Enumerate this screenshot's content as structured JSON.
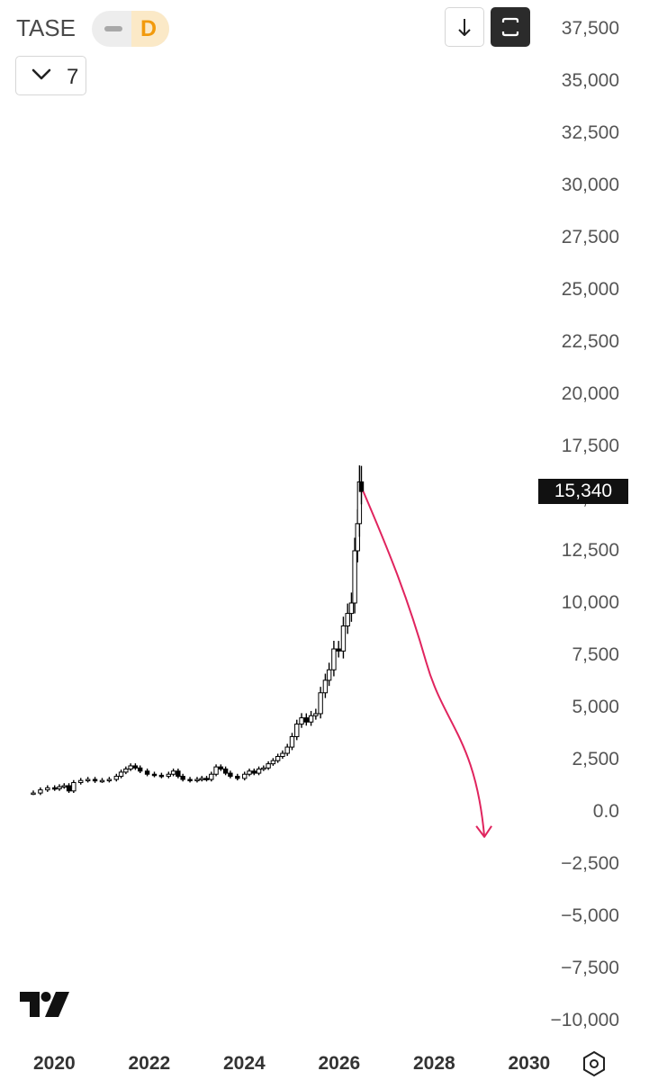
{
  "header": {
    "symbol": "TASE",
    "interval": "D",
    "indicator_count": "7",
    "icons": {
      "download": "download-arrow-icon",
      "fullscreen": "fullscreen-icon",
      "chevron": "chevron-down-icon",
      "settings": "settings-hexagon-icon",
      "logo": "tradingview-logo"
    }
  },
  "price_label": "15,340",
  "colors": {
    "candle": "#000000",
    "arrow": "#e0245e",
    "price_label_bg": "#111111"
  },
  "chart_data": {
    "type": "candlestick",
    "y_ticks": [
      "37,500",
      "35,000",
      "32,500",
      "30,000",
      "27,500",
      "25,000",
      "22,500",
      "20,000",
      "17,500",
      "15,000",
      "12,500",
      "10,000",
      "7,500",
      "5,000",
      "2,500",
      "0.0",
      "−2,500",
      "−5,000",
      "−7,500",
      "−10,000"
    ],
    "x_ticks": [
      "2020",
      "2022",
      "2024",
      "2026",
      "2028",
      "2030"
    ],
    "ylim": [
      -10000,
      37500
    ],
    "xlim": [
      2019.0,
      2031.0
    ],
    "series": [
      {
        "points": [
          [
            2019.45,
            900
          ],
          [
            2019.6,
            1050
          ],
          [
            2019.75,
            1150
          ],
          [
            2019.9,
            1100
          ],
          [
            2020.0,
            1200
          ],
          [
            2020.1,
            1250
          ],
          [
            2020.2,
            1000
          ],
          [
            2020.3,
            1400
          ],
          [
            2020.45,
            1500
          ],
          [
            2020.6,
            1550
          ],
          [
            2020.75,
            1480
          ],
          [
            2020.9,
            1500
          ],
          [
            2021.05,
            1550
          ],
          [
            2021.2,
            1700
          ],
          [
            2021.3,
            1900
          ],
          [
            2021.4,
            2050
          ],
          [
            2021.5,
            2200
          ],
          [
            2021.6,
            2100
          ],
          [
            2021.7,
            1950
          ],
          [
            2021.85,
            1800
          ],
          [
            2022.0,
            1750
          ],
          [
            2022.15,
            1700
          ],
          [
            2022.3,
            1800
          ],
          [
            2022.4,
            1950
          ],
          [
            2022.5,
            1700
          ],
          [
            2022.6,
            1550
          ],
          [
            2022.75,
            1500
          ],
          [
            2022.9,
            1550
          ],
          [
            2023.0,
            1600
          ],
          [
            2023.1,
            1550
          ],
          [
            2023.2,
            1800
          ],
          [
            2023.3,
            2150
          ],
          [
            2023.4,
            2050
          ],
          [
            2023.5,
            1850
          ],
          [
            2023.6,
            1700
          ],
          [
            2023.75,
            1600
          ],
          [
            2023.9,
            1800
          ],
          [
            2024.0,
            1950
          ],
          [
            2024.1,
            1850
          ],
          [
            2024.2,
            2050
          ],
          [
            2024.3,
            2100
          ],
          [
            2024.4,
            2300
          ],
          [
            2024.5,
            2450
          ],
          [
            2024.6,
            2650
          ],
          [
            2024.7,
            2800
          ],
          [
            2024.8,
            3100
          ],
          [
            2024.9,
            3600
          ],
          [
            2025.0,
            4200
          ],
          [
            2025.1,
            4500
          ],
          [
            2025.2,
            4300
          ],
          [
            2025.3,
            4600
          ],
          [
            2025.4,
            4700
          ],
          [
            2025.5,
            5700
          ],
          [
            2025.6,
            6300
          ],
          [
            2025.68,
            6800
          ],
          [
            2025.78,
            7800
          ],
          [
            2025.88,
            7700
          ],
          [
            2025.98,
            8900
          ],
          [
            2026.07,
            9500
          ],
          [
            2026.15,
            10000
          ],
          [
            2026.22,
            12500
          ],
          [
            2026.28,
            13800
          ],
          [
            2026.32,
            15800
          ],
          [
            2026.36,
            15340
          ]
        ]
      }
    ],
    "annotation": {
      "type": "arrow",
      "from": [
        2026.4,
        15340
      ],
      "to": [
        2028.95,
        -1200
      ]
    }
  }
}
